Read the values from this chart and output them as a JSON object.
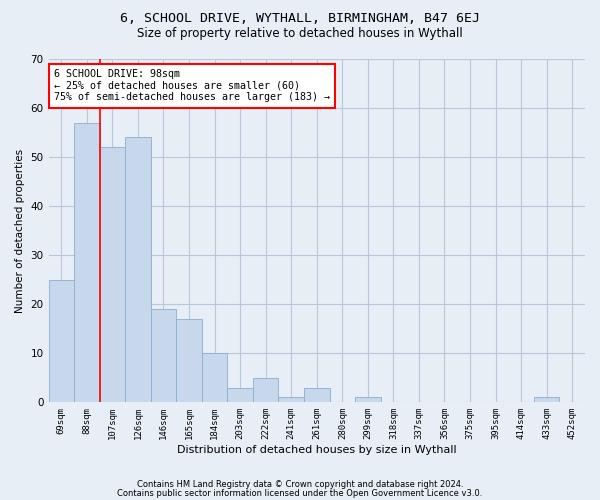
{
  "title": "6, SCHOOL DRIVE, WYTHALL, BIRMINGHAM, B47 6EJ",
  "subtitle": "Size of property relative to detached houses in Wythall",
  "xlabel": "Distribution of detached houses by size in Wythall",
  "ylabel": "Number of detached properties",
  "categories": [
    "69sqm",
    "88sqm",
    "107sqm",
    "126sqm",
    "146sqm",
    "165sqm",
    "184sqm",
    "203sqm",
    "222sqm",
    "241sqm",
    "261sqm",
    "280sqm",
    "299sqm",
    "318sqm",
    "337sqm",
    "356sqm",
    "375sqm",
    "395sqm",
    "414sqm",
    "433sqm",
    "452sqm"
  ],
  "values": [
    25,
    57,
    52,
    54,
    19,
    17,
    10,
    3,
    5,
    1,
    3,
    0,
    1,
    0,
    0,
    0,
    0,
    0,
    0,
    1,
    0
  ],
  "bar_color": "#c8d8ec",
  "bar_edge_color": "#8aaed0",
  "ylim": [
    0,
    70
  ],
  "yticks": [
    0,
    10,
    20,
    30,
    40,
    50,
    60,
    70
  ],
  "annotation_line1": "6 SCHOOL DRIVE: 98sqm",
  "annotation_line2": "← 25% of detached houses are smaller (60)",
  "annotation_line3": "75% of semi-detached houses are larger (183) →",
  "red_line_x": 1.5,
  "footer_line1": "Contains HM Land Registry data © Crown copyright and database right 2024.",
  "footer_line2": "Contains public sector information licensed under the Open Government Licence v3.0.",
  "fig_bg_color": "#e8eef5",
  "plot_bg_color": "#e8eef5",
  "grid_color": "#b8c8dc",
  "title_fontsize": 9.5,
  "subtitle_fontsize": 8.5
}
